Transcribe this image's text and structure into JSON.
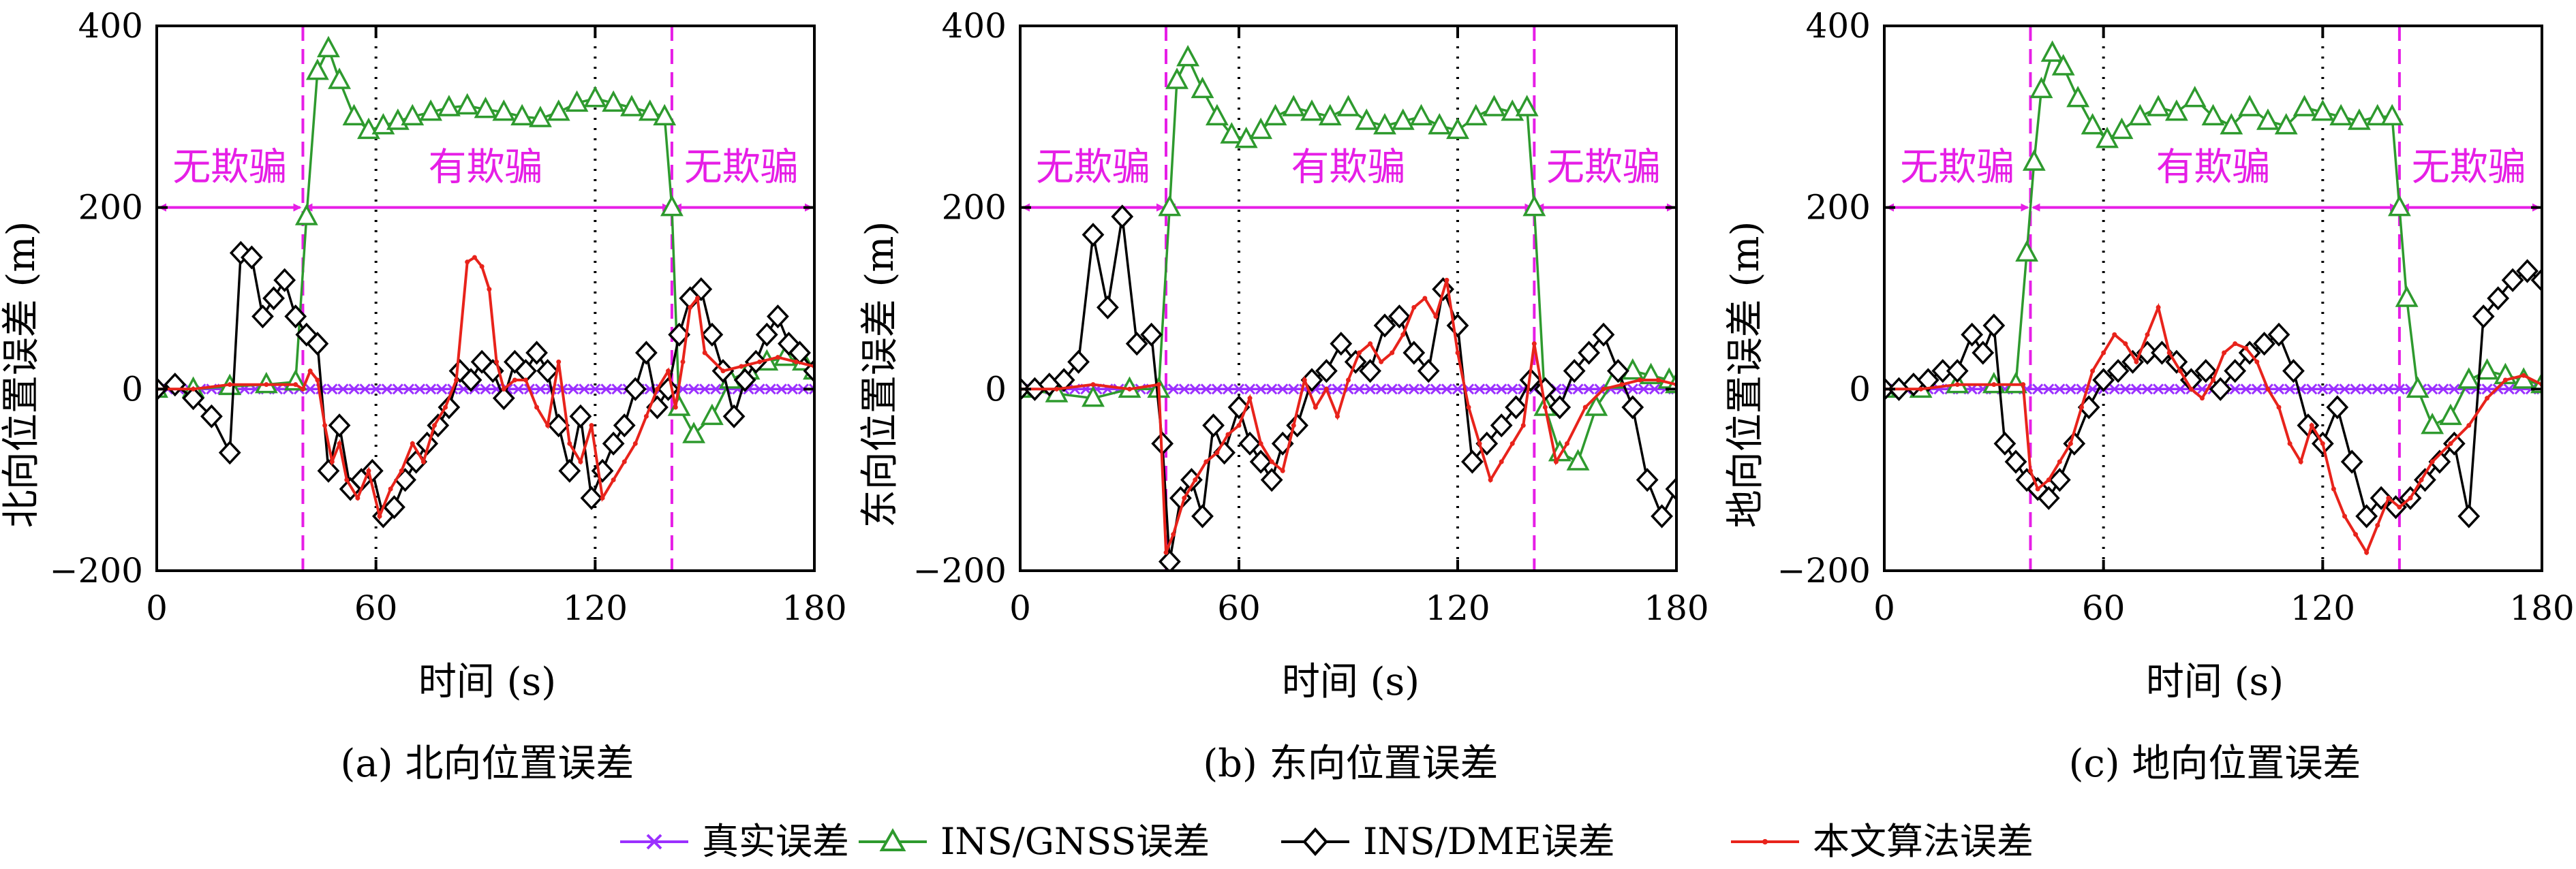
{
  "legend": {
    "items": [
      {
        "label": "真实误差",
        "color": "#9b30ff",
        "marker": "x"
      },
      {
        "label": "INS/GNSS误差",
        "color": "#2e9a2e",
        "marker": "triangle"
      },
      {
        "label": "INS/DME误差",
        "color": "#000000",
        "marker": "diamond"
      },
      {
        "label": "本文算法误差",
        "color": "#e8231b",
        "marker": "dot"
      }
    ]
  },
  "colors": {
    "spoof_boundary": "#e61ee6",
    "grid_line": "#000000",
    "truth": "#9b30ff",
    "gnss": "#2e9a2e",
    "dme": "#000000",
    "proposed": "#e8231b"
  },
  "chart_data": [
    {
      "type": "line",
      "caption": "(a) 北向位置误差",
      "ylabel": "北向位置误差 (m)",
      "xlabel": "时间 (s)",
      "xlim": [
        0,
        180
      ],
      "ylim": [
        -200,
        400
      ],
      "xticks": [
        "0",
        "60",
        "120",
        "180"
      ],
      "yticks": [
        "−200",
        "0",
        "200",
        "400"
      ],
      "vlines_dotted": [
        60,
        120
      ],
      "vlines_dashed": [
        40,
        141
      ],
      "regions": [
        {
          "label": "无欺骗",
          "x_from": 0,
          "x_to": 40,
          "x_center": 20
        },
        {
          "label": "有欺骗",
          "x_from": 40,
          "x_to": 141,
          "x_center": 90
        },
        {
          "label": "无欺骗",
          "x_from": 141,
          "x_to": 180,
          "x_center": 160
        }
      ],
      "region_arrow_y": 200,
      "region_label_y": 245,
      "series": [
        {
          "name": "真实误差",
          "key": "truth",
          "x": [
            0,
            180
          ],
          "y": [
            0,
            0
          ]
        },
        {
          "name": "INS/GNSS误差",
          "key": "gnss",
          "x": [
            0,
            10,
            20,
            30,
            38,
            41,
            44,
            47,
            50,
            54,
            58,
            62,
            66,
            70,
            75,
            80,
            85,
            90,
            95,
            100,
            105,
            110,
            115,
            120,
            125,
            130,
            135,
            139,
            141,
            143,
            147,
            152,
            157,
            162,
            167,
            172,
            177,
            180
          ],
          "y": [
            0,
            0,
            3,
            5,
            8,
            190,
            350,
            375,
            340,
            300,
            285,
            290,
            295,
            300,
            305,
            310,
            312,
            308,
            305,
            300,
            298,
            305,
            315,
            320,
            315,
            310,
            305,
            300,
            200,
            -20,
            -50,
            -30,
            10,
            20,
            30,
            35,
            30,
            20
          ]
        },
        {
          "name": "INS/DME误差",
          "key": "dme",
          "x": [
            0,
            5,
            10,
            15,
            20,
            23,
            26,
            29,
            32,
            35,
            38,
            41,
            44,
            47,
            50,
            53,
            56,
            59,
            62,
            65,
            68,
            71,
            74,
            77,
            80,
            83,
            86,
            89,
            92,
            95,
            98,
            101,
            104,
            107,
            110,
            113,
            116,
            119,
            122,
            125,
            128,
            131,
            134,
            137,
            140,
            143,
            146,
            149,
            152,
            155,
            158,
            161,
            164,
            167,
            170,
            173,
            176,
            180
          ],
          "y": [
            0,
            5,
            -10,
            -30,
            -70,
            150,
            145,
            80,
            100,
            120,
            80,
            60,
            50,
            -90,
            -40,
            -110,
            -100,
            -90,
            -140,
            -130,
            -100,
            -80,
            -60,
            -40,
            -20,
            20,
            10,
            30,
            20,
            -10,
            30,
            20,
            40,
            20,
            -40,
            -90,
            -30,
            -120,
            -90,
            -60,
            -40,
            0,
            40,
            -20,
            0,
            60,
            100,
            110,
            60,
            20,
            -30,
            10,
            30,
            60,
            80,
            50,
            40,
            20
          ]
        },
        {
          "name": "本文算法误差",
          "key": "proposed",
          "x": [
            0,
            10,
            20,
            30,
            38,
            40,
            42,
            44,
            46,
            48,
            50,
            52,
            55,
            58,
            61,
            64,
            67,
            70,
            73,
            76,
            79,
            82,
            85,
            87,
            89,
            91,
            93,
            95,
            98,
            101,
            104,
            107,
            110,
            113,
            116,
            119,
            122,
            125,
            128,
            131,
            134,
            137,
            140,
            142,
            144,
            146,
            148,
            150,
            155,
            160,
            165,
            170,
            175,
            180
          ],
          "y": [
            0,
            0,
            5,
            5,
            5,
            0,
            20,
            10,
            -40,
            -80,
            -60,
            -100,
            -120,
            -90,
            -140,
            -110,
            -90,
            -60,
            -80,
            -40,
            -20,
            10,
            140,
            145,
            135,
            110,
            30,
            0,
            10,
            10,
            -20,
            -40,
            30,
            -60,
            -80,
            -40,
            -120,
            -100,
            -80,
            -60,
            -30,
            0,
            20,
            -20,
            30,
            90,
            100,
            40,
            20,
            25,
            30,
            35,
            30,
            25
          ]
        }
      ]
    },
    {
      "type": "line",
      "caption": "(b) 东向位置误差",
      "ylabel": "东向位置误差 (m)",
      "xlabel": "时间 (s)",
      "xlim": [
        0,
        180
      ],
      "ylim": [
        -200,
        400
      ],
      "xticks": [
        "0",
        "60",
        "120",
        "180"
      ],
      "yticks": [
        "−200",
        "0",
        "200",
        "400"
      ],
      "vlines_dotted": [
        60,
        120
      ],
      "vlines_dashed": [
        40,
        141
      ],
      "regions": [
        {
          "label": "无欺骗",
          "x_from": 0,
          "x_to": 40,
          "x_center": 20
        },
        {
          "label": "有欺骗",
          "x_from": 40,
          "x_to": 141,
          "x_center": 90
        },
        {
          "label": "无欺骗",
          "x_from": 141,
          "x_to": 180,
          "x_center": 160
        }
      ],
      "region_arrow_y": 200,
      "region_label_y": 245,
      "series": [
        {
          "name": "真实误差",
          "key": "truth",
          "x": [
            0,
            180
          ],
          "y": [
            0,
            0
          ]
        },
        {
          "name": "INS/GNSS误差",
          "key": "gnss",
          "x": [
            0,
            10,
            20,
            30,
            38,
            41,
            43,
            46,
            50,
            54,
            58,
            62,
            66,
            70,
            75,
            80,
            85,
            90,
            95,
            100,
            105,
            110,
            115,
            120,
            125,
            130,
            135,
            139,
            141,
            144,
            148,
            153,
            158,
            163,
            168,
            173,
            178,
            180
          ],
          "y": [
            0,
            -5,
            -10,
            0,
            0,
            200,
            340,
            365,
            330,
            300,
            280,
            275,
            285,
            300,
            310,
            305,
            300,
            310,
            295,
            290,
            295,
            300,
            290,
            285,
            300,
            310,
            305,
            310,
            200,
            -20,
            -70,
            -80,
            -20,
            10,
            20,
            15,
            10,
            5
          ]
        },
        {
          "name": "INS/DME误差",
          "key": "dme",
          "x": [
            0,
            4,
            8,
            12,
            16,
            20,
            24,
            28,
            32,
            36,
            39,
            41,
            44,
            47,
            50,
            53,
            56,
            60,
            63,
            66,
            69,
            72,
            76,
            80,
            84,
            88,
            92,
            96,
            100,
            104,
            108,
            112,
            116,
            120,
            124,
            128,
            132,
            136,
            140,
            144,
            148,
            152,
            156,
            160,
            164,
            168,
            172,
            176,
            180
          ],
          "y": [
            0,
            0,
            5,
            10,
            30,
            170,
            90,
            190,
            50,
            60,
            -60,
            -190,
            -120,
            -100,
            -140,
            -40,
            -70,
            -20,
            -60,
            -80,
            -100,
            -60,
            -40,
            10,
            20,
            50,
            30,
            20,
            70,
            80,
            40,
            20,
            110,
            70,
            -80,
            -60,
            -40,
            -20,
            10,
            0,
            -20,
            20,
            40,
            60,
            20,
            -20,
            -100,
            -140,
            -110
          ]
        },
        {
          "name": "本文算法误差",
          "key": "proposed",
          "x": [
            0,
            10,
            20,
            30,
            38,
            40,
            42,
            45,
            48,
            51,
            54,
            57,
            60,
            63,
            66,
            69,
            72,
            75,
            78,
            81,
            84,
            87,
            90,
            93,
            96,
            99,
            102,
            105,
            108,
            111,
            114,
            117,
            120,
            123,
            126,
            129,
            132,
            135,
            138,
            141,
            144,
            147,
            150,
            155,
            160,
            165,
            170,
            175,
            180
          ],
          "y": [
            0,
            0,
            5,
            0,
            5,
            -180,
            -160,
            -120,
            -100,
            -80,
            -70,
            -50,
            -40,
            -10,
            -60,
            -80,
            -90,
            -40,
            10,
            -20,
            0,
            -30,
            10,
            40,
            50,
            30,
            40,
            60,
            90,
            100,
            80,
            120,
            40,
            -20,
            -60,
            -100,
            -80,
            -60,
            -40,
            50,
            -20,
            -80,
            -60,
            -20,
            0,
            5,
            10,
            10,
            5
          ]
        }
      ]
    },
    {
      "type": "line",
      "caption": "(c) 地向位置误差",
      "ylabel": "地向位置误差 (m)",
      "xlabel": "时间 (s)",
      "xlim": [
        0,
        180
      ],
      "ylim": [
        -200,
        400
      ],
      "xticks": [
        "0",
        "60",
        "120",
        "180"
      ],
      "yticks": [
        "−200",
        "0",
        "200",
        "400"
      ],
      "vlines_dotted": [
        60,
        120
      ],
      "vlines_dashed": [
        40,
        141
      ],
      "regions": [
        {
          "label": "无欺骗",
          "x_from": 0,
          "x_to": 40,
          "x_center": 20
        },
        {
          "label": "有欺骗",
          "x_from": 40,
          "x_to": 141,
          "x_center": 90
        },
        {
          "label": "无欺骗",
          "x_from": 141,
          "x_to": 180,
          "x_center": 160
        }
      ],
      "region_arrow_y": 200,
      "region_label_y": 245,
      "series": [
        {
          "name": "真实误差",
          "key": "truth",
          "x": [
            0,
            180
          ],
          "y": [
            0,
            0
          ]
        },
        {
          "name": "INS/GNSS误差",
          "key": "gnss",
          "x": [
            0,
            10,
            20,
            30,
            36,
            39,
            41,
            43,
            46,
            49,
            53,
            57,
            61,
            65,
            70,
            75,
            80,
            85,
            90,
            95,
            100,
            105,
            110,
            115,
            120,
            125,
            130,
            135,
            139,
            141,
            143,
            146,
            150,
            155,
            160,
            165,
            170,
            175,
            180
          ],
          "y": [
            0,
            0,
            5,
            5,
            5,
            150,
            250,
            330,
            370,
            355,
            320,
            290,
            275,
            285,
            300,
            310,
            305,
            320,
            300,
            290,
            310,
            295,
            290,
            310,
            305,
            300,
            295,
            300,
            300,
            200,
            100,
            0,
            -40,
            -30,
            10,
            20,
            15,
            10,
            5
          ]
        },
        {
          "name": "INS/DME误差",
          "key": "dme",
          "x": [
            0,
            4,
            8,
            12,
            16,
            20,
            24,
            27,
            30,
            33,
            36,
            39,
            42,
            45,
            48,
            52,
            56,
            60,
            64,
            68,
            72,
            76,
            80,
            84,
            88,
            92,
            96,
            100,
            104,
            108,
            112,
            116,
            120,
            124,
            128,
            132,
            136,
            140,
            144,
            148,
            152,
            156,
            160,
            164,
            168,
            172,
            176,
            180
          ],
          "y": [
            0,
            0,
            5,
            10,
            20,
            20,
            60,
            40,
            70,
            -60,
            -80,
            -100,
            -110,
            -120,
            -100,
            -60,
            -20,
            10,
            20,
            30,
            40,
            40,
            30,
            10,
            20,
            0,
            20,
            40,
            50,
            60,
            20,
            -40,
            -60,
            -20,
            -80,
            -140,
            -120,
            -130,
            -120,
            -100,
            -80,
            -60,
            -140,
            80,
            100,
            120,
            130,
            120
          ]
        },
        {
          "name": "本文算法误差",
          "key": "proposed",
          "x": [
            0,
            10,
            20,
            30,
            38,
            40,
            42,
            45,
            48,
            51,
            54,
            57,
            60,
            63,
            66,
            69,
            72,
            75,
            78,
            81,
            84,
            87,
            90,
            93,
            96,
            99,
            102,
            105,
            108,
            111,
            114,
            117,
            120,
            123,
            126,
            129,
            132,
            135,
            138,
            141,
            144,
            147,
            150,
            155,
            160,
            165,
            170,
            175,
            180
          ],
          "y": [
            0,
            0,
            5,
            5,
            5,
            -90,
            -110,
            -100,
            -80,
            -60,
            -20,
            20,
            40,
            60,
            50,
            30,
            60,
            90,
            40,
            20,
            0,
            -10,
            10,
            40,
            50,
            45,
            30,
            0,
            -20,
            -60,
            -80,
            -40,
            -60,
            -110,
            -140,
            -160,
            -180,
            -150,
            -120,
            -130,
            -120,
            -100,
            -80,
            -60,
            -40,
            -10,
            10,
            15,
            5
          ]
        }
      ]
    }
  ]
}
